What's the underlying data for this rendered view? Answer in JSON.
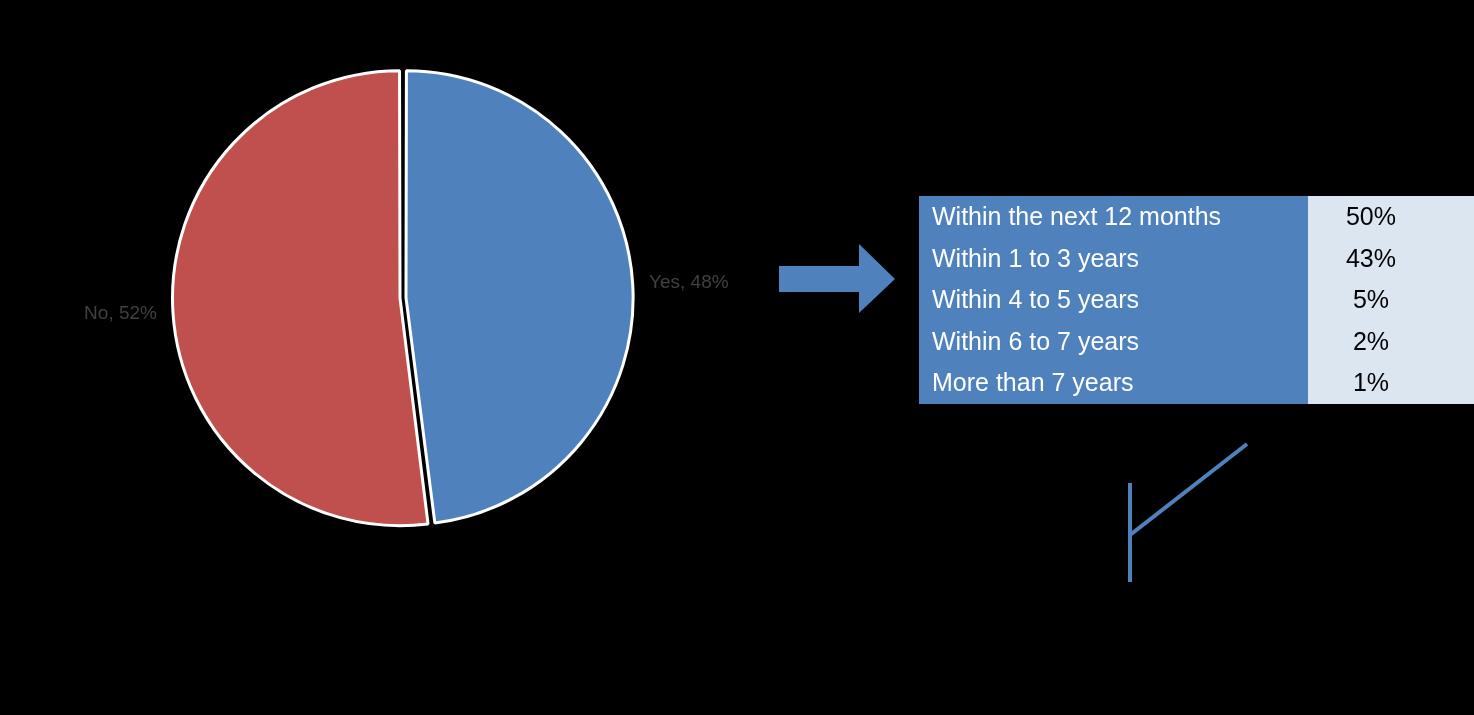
{
  "chart_data": [
    {
      "type": "pie",
      "categories": [
        "Yes",
        "No"
      ],
      "values": [
        48,
        52
      ],
      "colors": [
        "#4f81bd",
        "#c0504d"
      ],
      "value_labels": [
        "48%",
        "52%"
      ],
      "legend": false
    },
    {
      "type": "other",
      "categories": [
        "Within the next 12 months",
        "Within 1 to 3 years",
        "Within 4 to 5 years",
        "Within 6 to 7 years",
        "More than 7 years"
      ],
      "value_labels": [
        "50%",
        "43%",
        "5%",
        "2%",
        "1%"
      ]
    }
  ]
}
